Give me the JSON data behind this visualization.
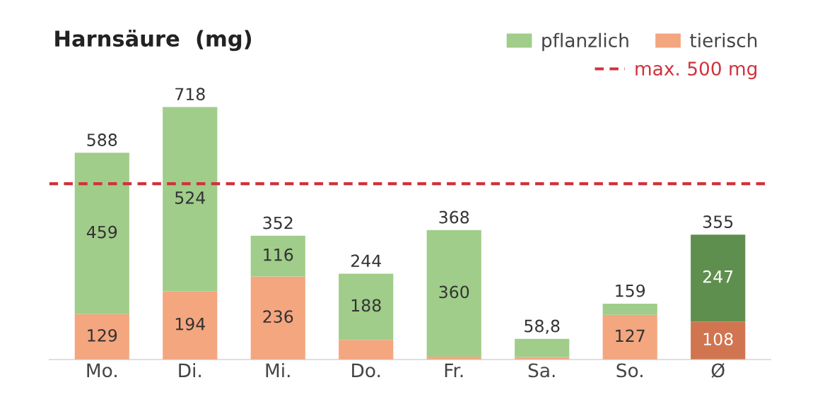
{
  "chart_data": {
    "type": "bar",
    "title": "Harnsäure  (mg)",
    "stacked": true,
    "legend": "top right",
    "tick_labels": "x",
    "categories": [
      "Mo.",
      "Di.",
      "Mi.",
      "Do.",
      "Fr.",
      "Sa.",
      "So.",
      "Ø"
    ],
    "series": [
      {
        "name": "tierisch",
        "color": "#f4a67f",
        "colors": [
          "#f4a67f",
          "#f4a67f",
          "#f4a67f",
          "#f4a67f",
          "#f4a67f",
          "#f4a67f",
          "#f4a67f",
          "#d07550"
        ],
        "values": [
          129,
          194,
          236,
          56,
          8,
          7,
          127,
          108
        ],
        "value_labels": [
          "129",
          "194",
          "236",
          null,
          null,
          null,
          "127",
          "108"
        ]
      },
      {
        "name": "pflanzlich",
        "color": "#a0cd8a",
        "colors": [
          "#a0cd8a",
          "#a0cd8a",
          "#a0cd8a",
          "#a0cd8a",
          "#a0cd8a",
          "#a0cd8a",
          "#a0cd8a",
          "#5f8f4e"
        ],
        "values": [
          459,
          524,
          116,
          188,
          360,
          51.8,
          32,
          247
        ],
        "value_labels": [
          "459",
          "524",
          "116",
          "188",
          "360",
          null,
          null,
          "247"
        ]
      }
    ],
    "totals": [
      "588",
      "718",
      "352",
      "244",
      "368",
      "58,8",
      "159",
      "355"
    ],
    "ref_lines": [
      {
        "axis": "y",
        "value": 500,
        "label": "max. 500 mg",
        "color": "#d0323c",
        "line_style": "dashed"
      }
    ]
  }
}
